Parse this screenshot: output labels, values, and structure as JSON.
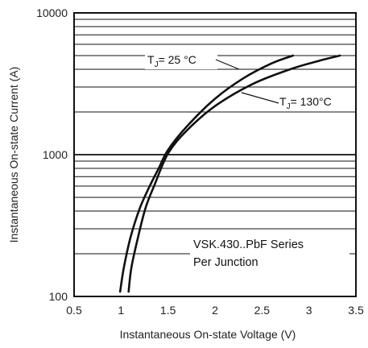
{
  "chart_data": {
    "type": "line",
    "xlabel": "Instantaneous  On-state  Voltage  (V)",
    "ylabel": "Instantaneous  On-state  Current  (A)",
    "x_scale": "linear",
    "y_scale": "log",
    "xlim": [
      0.5,
      3.5
    ],
    "ylim": [
      100,
      10000
    ],
    "x_ticks": [
      "0.5",
      "1",
      "1.5",
      "2",
      "2.5",
      "3",
      "3.5"
    ],
    "y_ticks": [
      "100",
      "1000",
      "10000"
    ],
    "grid": "horizontal, log minor lines",
    "series": [
      {
        "name": "TJ = 25 °C",
        "label_main": "T",
        "label_sub": "J",
        "label_rest": "=  25 °C",
        "x": [
          0.99,
          1.03,
          1.1,
          1.2,
          1.3,
          1.4,
          1.5,
          1.7,
          2.0,
          2.3,
          2.6,
          2.83
        ],
        "y": [
          108,
          160,
          260,
          420,
          590,
          800,
          1080,
          1580,
          2480,
          3450,
          4400,
          5000
        ]
      },
      {
        "name": "TJ = 130°C",
        "label_main": "T",
        "label_sub": "J",
        "label_rest": "=  130°C",
        "x": [
          1.08,
          1.11,
          1.18,
          1.26,
          1.36,
          1.5,
          1.7,
          2.0,
          2.4,
          2.8,
          3.1,
          3.33
        ],
        "y": [
          108,
          160,
          260,
          420,
          620,
          1020,
          1480,
          2200,
          3150,
          4000,
          4580,
          5000
        ]
      }
    ],
    "annotation": [
      "VSK.430..PbF  Series",
      "Per  Junction"
    ]
  }
}
